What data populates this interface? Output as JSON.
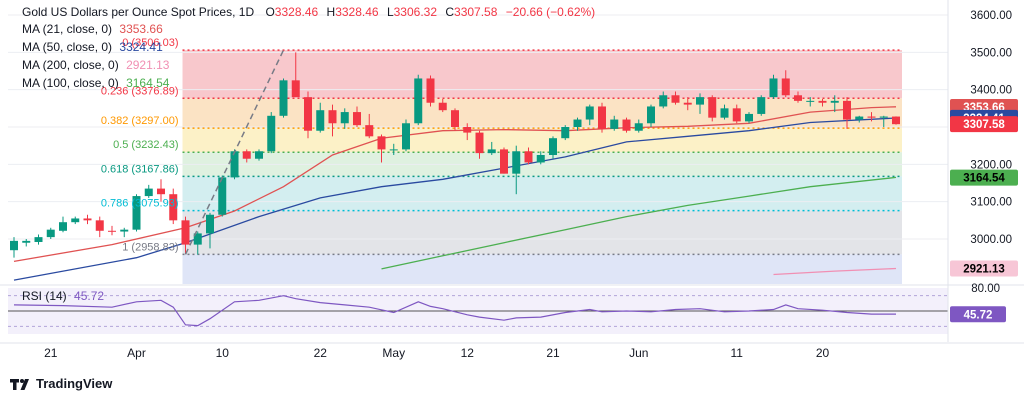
{
  "header": {
    "symbol_title": "Gold US Dollars per Ounce Spot Prices",
    "interval": "1D",
    "open_label": "O",
    "open": "3328.46",
    "high_label": "H",
    "high": "3328.46",
    "low_label": "L",
    "low": "3306.32",
    "close_label": "C",
    "close": "3307.58",
    "change": "−20.66 (−0.62%)"
  },
  "indicators": [
    {
      "label": "MA (21, close, 0)",
      "value": "3353.66",
      "color": "#e05252"
    },
    {
      "label": "MA (50, close, 0)",
      "value": "3324.41",
      "color": "#2a4aa0"
    },
    {
      "label": "MA (200, close, 0)",
      "value": "2921.13",
      "color": "#f18fb3"
    },
    {
      "label": "MA (100, close, 0)",
      "value": "3164.54",
      "color": "#4caf50"
    }
  ],
  "rsi": {
    "label": "RSI (14)",
    "value": "45.72",
    "scale_label": "80.00",
    "color": "#7e57c2"
  },
  "branding": {
    "logo_text": "TradingView"
  },
  "colors": {
    "up": "#089981",
    "down": "#f23645",
    "fib": "#1b7f5a"
  },
  "chart_data": {
    "type": "candlestick",
    "y_axis": {
      "min": 2900,
      "max": 3600,
      "ticks": [
        3000,
        3100,
        3200,
        3300,
        3400,
        3500,
        3600
      ],
      "tick_labels": [
        "3000.00",
        "3100.00",
        "3200.00",
        "3300.00",
        "3400.00",
        "3500.00",
        "3600.00"
      ]
    },
    "x_axis": {
      "tick_labels": [
        "21",
        "Apr",
        "10",
        "22",
        "May",
        "12",
        "21",
        "Jun",
        "11",
        "20"
      ],
      "tick_index": [
        3,
        10,
        17,
        25,
        31,
        37,
        44,
        51,
        59,
        66
      ]
    },
    "price_labels": [
      {
        "value": 3353.66,
        "text": "3353.66",
        "bg": "#e05252",
        "fg": "#ffffff"
      },
      {
        "value": 3324.41,
        "text": "3324.41",
        "bg": "#2a4aa0",
        "fg": "#ffffff"
      },
      {
        "value": 3307.58,
        "text": "3307.58",
        "bg": "#f23645",
        "fg": "#ffffff"
      },
      {
        "value": 3164.54,
        "text": "3164.54",
        "bg": "#4caf50",
        "fg": "#000000"
      },
      {
        "value": 2921.13,
        "text": "2921.13",
        "bg": "#f7c6d6",
        "fg": "#000000"
      }
    ],
    "fibonacci": {
      "start_index": 14,
      "end_index": 72,
      "levels": [
        {
          "ratio": "0",
          "price": 3506.03,
          "label": "0 (3506.03)",
          "color": "#f23645"
        },
        {
          "ratio": "0.236",
          "price": 3376.89,
          "label": "0.236 (3376.89)",
          "color": "#f23645"
        },
        {
          "ratio": "0.382",
          "price": 3297.0,
          "label": "0.382 (3297.00)",
          "color": "#ff9800"
        },
        {
          "ratio": "0.5",
          "price": 3232.43,
          "label": "0.5 (3232.43)",
          "color": "#4caf50"
        },
        {
          "ratio": "0.618",
          "price": 3167.86,
          "label": "0.618 (3167.86)",
          "color": "#089981"
        },
        {
          "ratio": "0.786",
          "price": 3075.93,
          "label": "0.786 (3075.93)",
          "color": "#00bcd4"
        },
        {
          "ratio": "1",
          "price": 2958.83,
          "label": "1 (2958.83)",
          "color": "#787b86"
        }
      ],
      "trend_line": {
        "from_index": 14,
        "from_price": 2958.83,
        "to_index": 22,
        "to_price": 3506.03
      }
    },
    "candles": [
      {
        "o": 2970,
        "h": 3005,
        "l": 2950,
        "c": 2995
      },
      {
        "o": 2990,
        "h": 3000,
        "l": 2980,
        "c": 2995
      },
      {
        "o": 2992,
        "h": 3012,
        "l": 2985,
        "c": 3005
      },
      {
        "o": 3005,
        "h": 3030,
        "l": 3000,
        "c": 3025
      },
      {
        "o": 3022,
        "h": 3060,
        "l": 3018,
        "c": 3045
      },
      {
        "o": 3045,
        "h": 3060,
        "l": 3040,
        "c": 3055
      },
      {
        "o": 3055,
        "h": 3065,
        "l": 3040,
        "c": 3050
      },
      {
        "o": 3050,
        "h": 3060,
        "l": 3005,
        "c": 3022
      },
      {
        "o": 3022,
        "h": 3035,
        "l": 3010,
        "c": 3020
      },
      {
        "o": 3020,
        "h": 3030,
        "l": 3005,
        "c": 3025
      },
      {
        "o": 3025,
        "h": 3120,
        "l": 3020,
        "c": 3115
      },
      {
        "o": 3115,
        "h": 3145,
        "l": 3110,
        "c": 3135
      },
      {
        "o": 3135,
        "h": 3160,
        "l": 3100,
        "c": 3120
      },
      {
        "o": 3120,
        "h": 3135,
        "l": 3040,
        "c": 3050
      },
      {
        "o": 3050,
        "h": 3060,
        "l": 2960,
        "c": 2985
      },
      {
        "o": 2985,
        "h": 3020,
        "l": 2958,
        "c": 3015
      },
      {
        "o": 3015,
        "h": 3070,
        "l": 2975,
        "c": 3065
      },
      {
        "o": 3065,
        "h": 3170,
        "l": 3060,
        "c": 3165
      },
      {
        "o": 3165,
        "h": 3240,
        "l": 3160,
        "c": 3235
      },
      {
        "o": 3235,
        "h": 3240,
        "l": 3205,
        "c": 3215
      },
      {
        "o": 3215,
        "h": 3240,
        "l": 3210,
        "c": 3235
      },
      {
        "o": 3235,
        "h": 3340,
        "l": 3230,
        "c": 3330
      },
      {
        "o": 3330,
        "h": 3430,
        "l": 3325,
        "c": 3425
      },
      {
        "o": 3425,
        "h": 3500,
        "l": 3380,
        "c": 3380
      },
      {
        "o": 3380,
        "h": 3395,
        "l": 3270,
        "c": 3290
      },
      {
        "o": 3290,
        "h": 3365,
        "l": 3285,
        "c": 3345
      },
      {
        "o": 3345,
        "h": 3360,
        "l": 3275,
        "c": 3310
      },
      {
        "o": 3310,
        "h": 3350,
        "l": 3295,
        "c": 3340
      },
      {
        "o": 3340,
        "h": 3355,
        "l": 3300,
        "c": 3305
      },
      {
        "o": 3305,
        "h": 3335,
        "l": 3270,
        "c": 3275
      },
      {
        "o": 3275,
        "h": 3280,
        "l": 3205,
        "c": 3240
      },
      {
        "o": 3240,
        "h": 3255,
        "l": 3225,
        "c": 3240
      },
      {
        "o": 3240,
        "h": 3320,
        "l": 3235,
        "c": 3310
      },
      {
        "o": 3310,
        "h": 3440,
        "l": 3305,
        "c": 3430
      },
      {
        "o": 3430,
        "h": 3438,
        "l": 3355,
        "c": 3365
      },
      {
        "o": 3365,
        "h": 3375,
        "l": 3340,
        "c": 3345
      },
      {
        "o": 3345,
        "h": 3350,
        "l": 3290,
        "c": 3300
      },
      {
        "o": 3300,
        "h": 3310,
        "l": 3265,
        "c": 3285
      },
      {
        "o": 3285,
        "h": 3290,
        "l": 3215,
        "c": 3230
      },
      {
        "o": 3230,
        "h": 3260,
        "l": 3225,
        "c": 3240
      },
      {
        "o": 3240,
        "h": 3245,
        "l": 3175,
        "c": 3175
      },
      {
        "o": 3175,
        "h": 3250,
        "l": 3120,
        "c": 3235
      },
      {
        "o": 3235,
        "h": 3245,
        "l": 3200,
        "c": 3205
      },
      {
        "o": 3205,
        "h": 3235,
        "l": 3200,
        "c": 3225
      },
      {
        "o": 3225,
        "h": 3275,
        "l": 3215,
        "c": 3270
      },
      {
        "o": 3270,
        "h": 3305,
        "l": 3265,
        "c": 3300
      },
      {
        "o": 3300,
        "h": 3325,
        "l": 3290,
        "c": 3320
      },
      {
        "o": 3320,
        "h": 3360,
        "l": 3305,
        "c": 3355
      },
      {
        "o": 3355,
        "h": 3365,
        "l": 3285,
        "c": 3295
      },
      {
        "o": 3295,
        "h": 3330,
        "l": 3290,
        "c": 3320
      },
      {
        "o": 3320,
        "h": 3325,
        "l": 3285,
        "c": 3290
      },
      {
        "o": 3290,
        "h": 3320,
        "l": 3285,
        "c": 3310
      },
      {
        "o": 3310,
        "h": 3360,
        "l": 3300,
        "c": 3355
      },
      {
        "o": 3355,
        "h": 3395,
        "l": 3350,
        "c": 3385
      },
      {
        "o": 3385,
        "h": 3395,
        "l": 3360,
        "c": 3365
      },
      {
        "o": 3365,
        "h": 3380,
        "l": 3345,
        "c": 3360
      },
      {
        "o": 3360,
        "h": 3390,
        "l": 3335,
        "c": 3380
      },
      {
        "o": 3380,
        "h": 3385,
        "l": 3315,
        "c": 3325
      },
      {
        "o": 3325,
        "h": 3360,
        "l": 3320,
        "c": 3350
      },
      {
        "o": 3350,
        "h": 3360,
        "l": 3310,
        "c": 3315
      },
      {
        "o": 3315,
        "h": 3340,
        "l": 3310,
        "c": 3335
      },
      {
        "o": 3335,
        "h": 3385,
        "l": 3330,
        "c": 3380
      },
      {
        "o": 3380,
        "h": 3440,
        "l": 3375,
        "c": 3430
      },
      {
        "o": 3430,
        "h": 3452,
        "l": 3380,
        "c": 3385
      },
      {
        "o": 3385,
        "h": 3395,
        "l": 3365,
        "c": 3370
      },
      {
        "o": 3370,
        "h": 3380,
        "l": 3355,
        "c": 3370
      },
      {
        "o": 3370,
        "h": 3375,
        "l": 3355,
        "c": 3365
      },
      {
        "o": 3365,
        "h": 3385,
        "l": 3340,
        "c": 3370
      },
      {
        "o": 3370,
        "h": 3380,
        "l": 3295,
        "c": 3320
      },
      {
        "o": 3320,
        "h": 3330,
        "l": 3312,
        "c": 3328
      },
      {
        "o": 3328,
        "h": 3340,
        "l": 3315,
        "c": 3325
      },
      {
        "o": 3325,
        "h": 3330,
        "l": 3300,
        "c": 3328
      },
      {
        "o": 3328,
        "h": 3328.46,
        "l": 3306.32,
        "c": 3307.58
      }
    ],
    "ma21": [
      [
        0,
        2940
      ],
      [
        8,
        2985
      ],
      [
        14,
        3030
      ],
      [
        18,
        3075
      ],
      [
        22,
        3140
      ],
      [
        26,
        3225
      ],
      [
        30,
        3270
      ],
      [
        35,
        3290
      ],
      [
        40,
        3293
      ],
      [
        45,
        3290
      ],
      [
        50,
        3298
      ],
      [
        55,
        3302
      ],
      [
        60,
        3310
      ],
      [
        65,
        3340
      ],
      [
        70,
        3352
      ],
      [
        72,
        3354
      ]
    ],
    "ma50": [
      [
        0,
        2890
      ],
      [
        10,
        2950
      ],
      [
        14,
        2990
      ],
      [
        20,
        3060
      ],
      [
        25,
        3110
      ],
      [
        30,
        3140
      ],
      [
        35,
        3160
      ],
      [
        40,
        3190
      ],
      [
        45,
        3220
      ],
      [
        50,
        3260
      ],
      [
        55,
        3275
      ],
      [
        60,
        3290
      ],
      [
        65,
        3312
      ],
      [
        72,
        3324
      ]
    ],
    "ma100": [
      [
        30,
        2920
      ],
      [
        35,
        2955
      ],
      [
        40,
        2990
      ],
      [
        45,
        3025
      ],
      [
        50,
        3060
      ],
      [
        55,
        3090
      ],
      [
        60,
        3115
      ],
      [
        65,
        3140
      ],
      [
        72,
        3165
      ]
    ],
    "ma200": [
      [
        62,
        2905
      ],
      [
        67,
        2914
      ],
      [
        72,
        2921
      ]
    ],
    "rsi_values": [
      [
        0,
        58
      ],
      [
        4,
        57
      ],
      [
        8,
        55
      ],
      [
        10,
        62
      ],
      [
        12,
        64
      ],
      [
        13,
        55
      ],
      [
        14,
        32
      ],
      [
        15,
        31
      ],
      [
        16,
        40
      ],
      [
        18,
        62
      ],
      [
        20,
        64
      ],
      [
        22,
        70
      ],
      [
        23,
        66
      ],
      [
        25,
        61
      ],
      [
        27,
        58
      ],
      [
        29,
        55
      ],
      [
        31,
        48
      ],
      [
        33,
        62
      ],
      [
        34,
        56
      ],
      [
        35,
        53
      ],
      [
        37,
        45
      ],
      [
        38,
        42
      ],
      [
        40,
        38
      ],
      [
        41,
        41
      ],
      [
        43,
        42
      ],
      [
        45,
        48
      ],
      [
        47,
        52
      ],
      [
        48,
        49
      ],
      [
        50,
        50
      ],
      [
        52,
        49
      ],
      [
        54,
        52
      ],
      [
        56,
        53
      ],
      [
        58,
        49
      ],
      [
        60,
        50
      ],
      [
        62,
        52
      ],
      [
        63,
        58
      ],
      [
        64,
        53
      ],
      [
        66,
        51
      ],
      [
        68,
        48
      ],
      [
        70,
        46
      ],
      [
        72,
        46
      ]
    ]
  }
}
